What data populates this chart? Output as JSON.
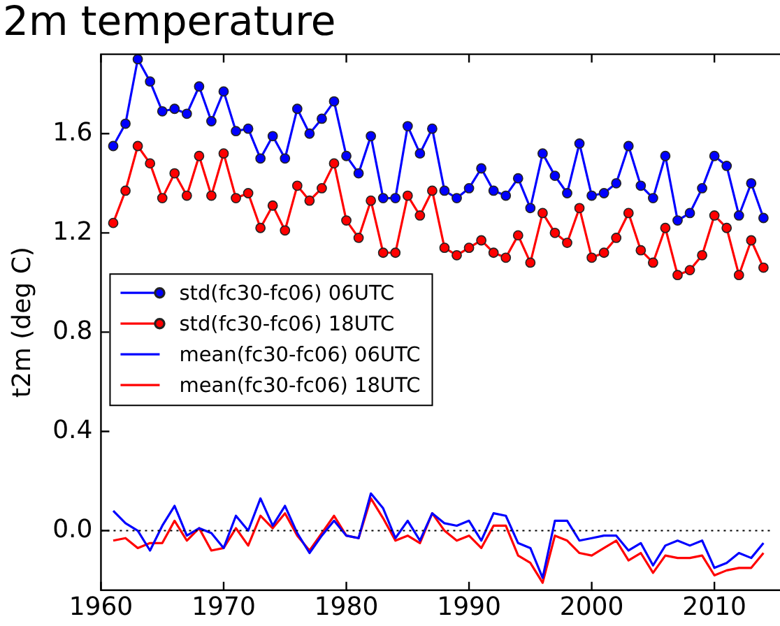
{
  "chart_data": {
    "type": "line",
    "title": "2m temperature",
    "ylabel": "t2m (deg C)",
    "x": [
      1961,
      1962,
      1963,
      1964,
      1965,
      1966,
      1967,
      1968,
      1969,
      1970,
      1971,
      1972,
      1973,
      1974,
      1975,
      1976,
      1977,
      1978,
      1979,
      1980,
      1981,
      1982,
      1983,
      1984,
      1985,
      1986,
      1987,
      1988,
      1989,
      1990,
      1991,
      1992,
      1993,
      1994,
      1995,
      1996,
      1997,
      1998,
      1999,
      2000,
      2001,
      2002,
      2003,
      2004,
      2005,
      2006,
      2007,
      2008,
      2009,
      2010,
      2011,
      2012,
      2013,
      2014
    ],
    "xlim": [
      1960,
      2014.8
    ],
    "xticks": [
      1960,
      1970,
      1980,
      1990,
      2000,
      2010
    ],
    "ylim": [
      -0.24,
      1.92
    ],
    "yticks": [
      {
        "value": 0,
        "label": "0.0"
      },
      0.4,
      0.8,
      1.2,
      1.6
    ],
    "grid": false,
    "legend": "left",
    "ref_lines": [
      {
        "axis": "y",
        "value": 0,
        "color": "#000000",
        "line_style": "dotted"
      }
    ],
    "series": [
      {
        "name": "std(fc30-fc06) 06UTC",
        "color": "#0000ff",
        "marker": "circle",
        "values": [
          1.55,
          1.64,
          1.9,
          1.81,
          1.69,
          1.7,
          1.68,
          1.79,
          1.65,
          1.77,
          1.61,
          1.62,
          1.5,
          1.59,
          1.5,
          1.7,
          1.6,
          1.66,
          1.73,
          1.51,
          1.44,
          1.59,
          1.34,
          1.34,
          1.63,
          1.52,
          1.62,
          1.37,
          1.34,
          1.38,
          1.46,
          1.37,
          1.35,
          1.42,
          1.3,
          1.52,
          1.43,
          1.36,
          1.56,
          1.35,
          1.36,
          1.4,
          1.55,
          1.39,
          1.34,
          1.51,
          1.25,
          1.28,
          1.38,
          1.51,
          1.47,
          1.27,
          1.4,
          1.26
        ]
      },
      {
        "name": "std(fc30-fc06) 18UTC",
        "color": "#ff0000",
        "marker": "circle",
        "values": [
          1.24,
          1.37,
          1.55,
          1.48,
          1.34,
          1.44,
          1.35,
          1.51,
          1.35,
          1.52,
          1.34,
          1.36,
          1.22,
          1.31,
          1.21,
          1.39,
          1.33,
          1.38,
          1.48,
          1.25,
          1.18,
          1.33,
          1.12,
          1.12,
          1.35,
          1.27,
          1.37,
          1.14,
          1.11,
          1.14,
          1.17,
          1.12,
          1.1,
          1.19,
          1.08,
          1.28,
          1.2,
          1.16,
          1.3,
          1.1,
          1.12,
          1.18,
          1.28,
          1.13,
          1.08,
          1.22,
          1.03,
          1.05,
          1.11,
          1.27,
          1.22,
          1.03,
          1.17,
          1.06
        ]
      },
      {
        "name": "mean(fc30-fc06) 06UTC",
        "color": "#0000ff",
        "marker": "none",
        "values": [
          0.08,
          0.03,
          0.0,
          -0.08,
          0.02,
          0.1,
          -0.02,
          0.01,
          -0.01,
          -0.07,
          0.06,
          0.0,
          0.13,
          0.02,
          0.1,
          -0.01,
          -0.09,
          -0.02,
          0.04,
          -0.02,
          -0.03,
          0.15,
          0.09,
          -0.03,
          0.04,
          -0.04,
          0.07,
          0.03,
          0.02,
          0.04,
          -0.04,
          0.07,
          0.06,
          -0.05,
          -0.07,
          -0.19,
          0.04,
          0.04,
          -0.04,
          -0.03,
          -0.02,
          -0.02,
          -0.08,
          -0.05,
          -0.14,
          -0.06,
          -0.04,
          -0.06,
          -0.04,
          -0.15,
          -0.13,
          -0.09,
          -0.11,
          -0.05
        ]
      },
      {
        "name": "mean(fc30-fc06) 18UTC",
        "color": "#ff0000",
        "marker": "none",
        "values": [
          -0.04,
          -0.03,
          -0.07,
          -0.05,
          -0.05,
          0.04,
          -0.04,
          0.01,
          -0.08,
          -0.07,
          0.01,
          -0.06,
          0.06,
          0.01,
          0.07,
          -0.02,
          -0.08,
          -0.01,
          0.06,
          -0.02,
          -0.03,
          0.13,
          0.05,
          -0.04,
          -0.02,
          -0.05,
          0.07,
          0.0,
          -0.04,
          -0.02,
          -0.07,
          0.02,
          0.02,
          -0.1,
          -0.13,
          -0.21,
          -0.02,
          -0.04,
          -0.09,
          -0.1,
          -0.07,
          -0.04,
          -0.12,
          -0.09,
          -0.17,
          -0.1,
          -0.11,
          -0.11,
          -0.1,
          -0.18,
          -0.16,
          -0.15,
          -0.15,
          -0.09
        ]
      }
    ]
  }
}
